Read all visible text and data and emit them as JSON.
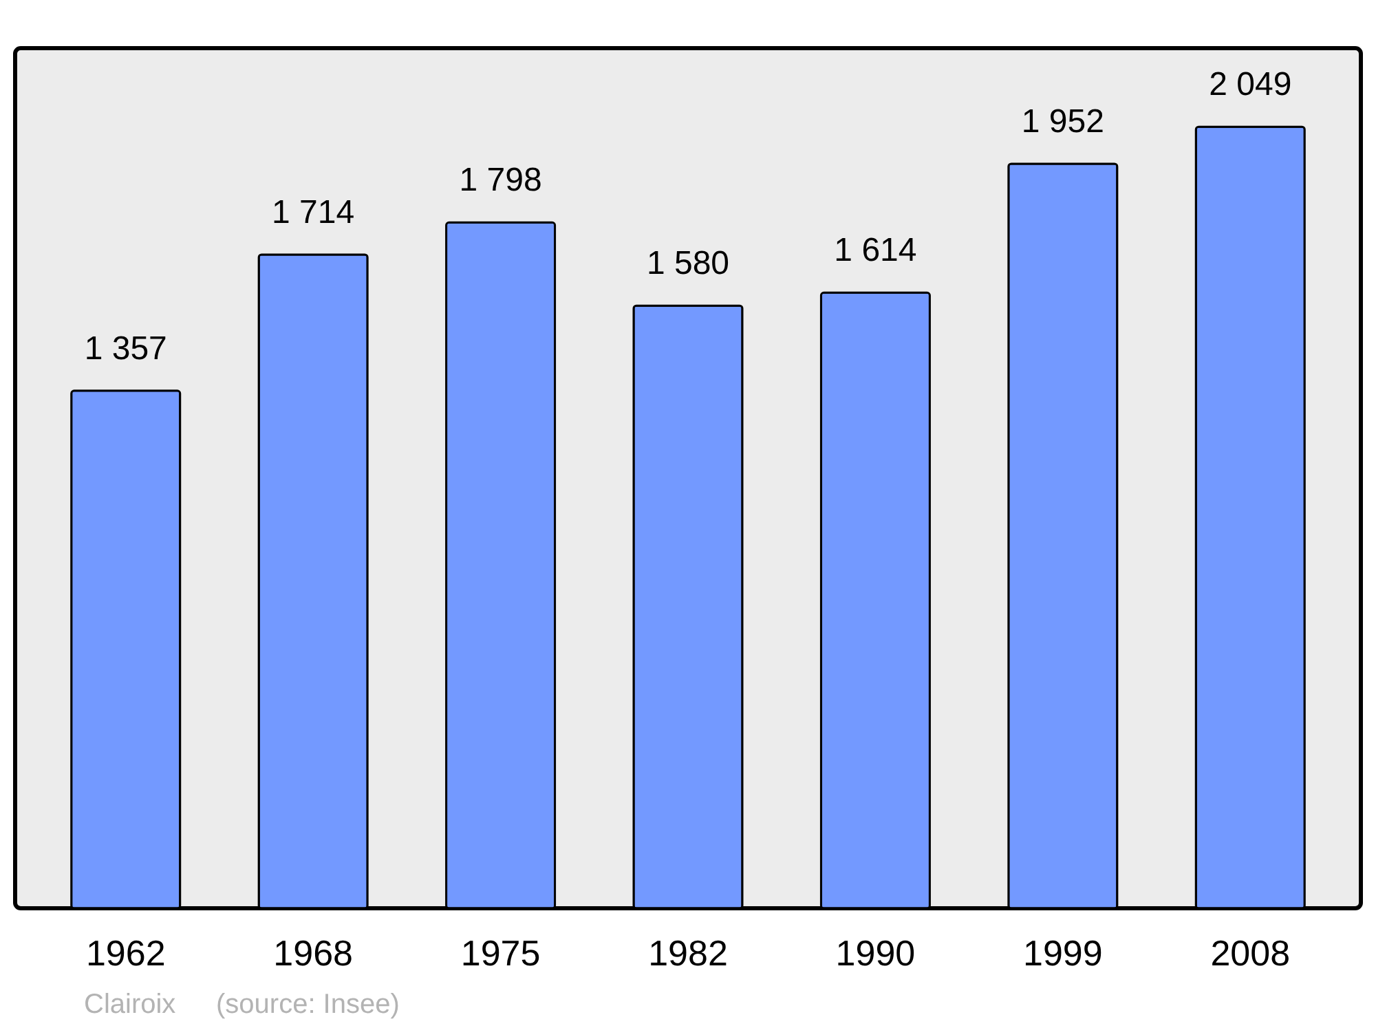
{
  "chart_data": {
    "type": "bar",
    "categories": [
      "1962",
      "1968",
      "1975",
      "1982",
      "1990",
      "1999",
      "2008"
    ],
    "values": [
      1357,
      1714,
      1798,
      1580,
      1614,
      1952,
      2049
    ],
    "value_labels": [
      "1 357",
      "1 714",
      "1 798",
      "1 580",
      "1 614",
      "1 952",
      "2 049"
    ],
    "color": "#7399ff",
    "ylim": [
      0,
      2255
    ],
    "tick_labels": "x",
    "annotations": [
      "Clairoix",
      "(source: Insee)"
    ]
  }
}
